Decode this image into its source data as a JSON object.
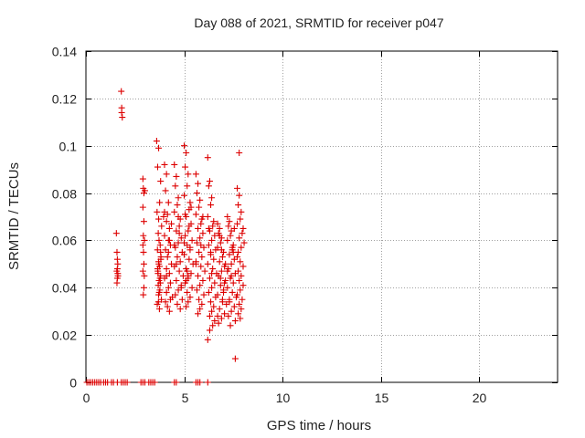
{
  "chart_data": {
    "type": "scatter",
    "title": "Day 088 of 2021, SRMTID for receiver p047",
    "xlabel": "GPS time / hours",
    "ylabel": "SRMTID / TECUs",
    "xlim": [
      0,
      24
    ],
    "ylim": [
      0,
      0.14
    ],
    "xticks": [
      0,
      5,
      10,
      15,
      20
    ],
    "xtick_labels": [
      "0",
      "5",
      "10",
      "15",
      "20"
    ],
    "yticks": [
      0,
      0.02,
      0.04,
      0.06,
      0.08,
      0.1,
      0.12,
      0.14
    ],
    "ytick_labels": [
      "0",
      "0.02",
      "0.04",
      "0.06",
      "0.08",
      "0.1",
      "0.12",
      "0.14"
    ],
    "grid": true,
    "marker": "+",
    "series": [
      {
        "name": "p047",
        "color": "#dd0000",
        "x": [
          0.05,
          0.15,
          0.25,
          0.35,
          0.45,
          0.55,
          0.65,
          0.75,
          0.9,
          1.0,
          1.1,
          1.3,
          1.4,
          1.6,
          1.8,
          1.9,
          2.0,
          2.1,
          2.8,
          2.9,
          3.0,
          3.2,
          3.3,
          3.4,
          3.5,
          4.5,
          4.6,
          5.6,
          5.7,
          5.8,
          6.2,
          1.55,
          1.58,
          1.6,
          1.62,
          1.6,
          1.58,
          1.62,
          1.6,
          1.57,
          1.63,
          1.8,
          1.82,
          1.85,
          1.82,
          2.9,
          2.92,
          2.95,
          2.9,
          2.95,
          2.92,
          2.98,
          2.9,
          2.93,
          2.95,
          2.9,
          2.97,
          2.95,
          2.92,
          3.0,
          3.6,
          3.7,
          3.65,
          3.8,
          3.75,
          3.62,
          3.7,
          3.85,
          3.68,
          3.72,
          3.78,
          3.64,
          3.82,
          3.7,
          3.75,
          3.66,
          3.8,
          3.72,
          3.68,
          3.76,
          3.7,
          3.84,
          3.63,
          3.74,
          3.8,
          3.71,
          3.67,
          3.79,
          3.73,
          3.69,
          3.77,
          3.65,
          3.81,
          4.0,
          4.1,
          4.05,
          4.2,
          4.15,
          3.95,
          4.1,
          4.25,
          4.0,
          4.2,
          4.3,
          4.05,
          4.15,
          4.35,
          4.1,
          4.25,
          4.0,
          4.3,
          4.2,
          4.1,
          4.4,
          4.05,
          4.15,
          4.25,
          4.35,
          4.2,
          4.1,
          4.3,
          4.0,
          4.25,
          4.5,
          4.6,
          4.55,
          4.7,
          4.65,
          4.5,
          4.8,
          4.75,
          4.6,
          4.85,
          4.7,
          4.55,
          4.9,
          4.65,
          4.8,
          4.5,
          4.75,
          4.95,
          4.6,
          4.85,
          4.7,
          4.55,
          4.9,
          4.65,
          4.8,
          4.7,
          4.6,
          4.85,
          4.75,
          4.5,
          5.0,
          5.1,
          5.05,
          5.2,
          5.15,
          5.0,
          5.3,
          5.25,
          5.1,
          5.35,
          5.2,
          5.05,
          5.4,
          5.15,
          5.3,
          5.0,
          5.25,
          5.45,
          5.1,
          5.35,
          5.2,
          5.05,
          5.4,
          5.15,
          5.3,
          5.2,
          5.1,
          5.35,
          5.25,
          5.0,
          5.05,
          5.15,
          5.3,
          5.2,
          5.1,
          5.6,
          5.7,
          5.65,
          5.8,
          5.75,
          5.6,
          5.9,
          5.85,
          5.7,
          5.95,
          5.8,
          5.65,
          6.0,
          5.75,
          5.9,
          5.6,
          5.85,
          6.05,
          5.7,
          5.95,
          5.8,
          5.65,
          6.0,
          5.75,
          5.9,
          5.8,
          5.7,
          5.95,
          5.85,
          5.6,
          6.2,
          6.3,
          6.25,
          6.4,
          6.35,
          6.2,
          6.5,
          6.45,
          6.3,
          6.55,
          6.4,
          6.25,
          6.6,
          6.35,
          6.5,
          6.2,
          6.45,
          6.65,
          6.3,
          6.55,
          6.4,
          6.25,
          6.6,
          6.35,
          6.5,
          6.4,
          6.3,
          6.55,
          6.45,
          6.2,
          6.3,
          6.4,
          6.35,
          6.25,
          6.7,
          6.8,
          6.75,
          6.9,
          6.85,
          6.7,
          7.0,
          6.95,
          6.8,
          7.05,
          6.9,
          6.75,
          7.1,
          6.85,
          7.0,
          6.7,
          6.95,
          7.15,
          6.8,
          7.05,
          6.9,
          6.75,
          7.1,
          6.85,
          7.0,
          6.9,
          6.8,
          7.05,
          6.95,
          6.7,
          7.2,
          7.3,
          7.25,
          7.4,
          7.35,
          7.2,
          7.5,
          7.45,
          7.3,
          7.55,
          7.4,
          7.25,
          7.6,
          7.35,
          7.5,
          7.2,
          7.45,
          7.65,
          7.3,
          7.55,
          7.4,
          7.25,
          7.6,
          7.35,
          7.5,
          7.4,
          7.3,
          7.55,
          7.45,
          7.2,
          7.7,
          7.8,
          7.75,
          7.9,
          7.85,
          7.7,
          8.0,
          7.95,
          7.8,
          8.05,
          7.9,
          7.75,
          7.7,
          7.85,
          8.0,
          7.75,
          7.9,
          7.8,
          8.0,
          7.85,
          7.7,
          7.95,
          7.8,
          7.9,
          7.75,
          7.85,
          7.6,
          7.8
        ],
        "y": [
          0,
          0,
          0,
          0,
          0,
          0,
          0,
          0,
          0,
          0,
          0,
          0,
          0,
          0,
          0,
          0,
          0,
          0,
          0,
          0,
          0,
          0,
          0,
          0,
          0,
          0,
          0,
          0,
          0,
          0,
          0,
          0.063,
          0.055,
          0.048,
          0.046,
          0.044,
          0.042,
          0.05,
          0.052,
          0.047,
          0.045,
          0.123,
          0.114,
          0.112,
          0.116,
          0.086,
          0.082,
          0.08,
          0.074,
          0.068,
          0.062,
          0.06,
          0.058,
          0.055,
          0.05,
          0.047,
          0.045,
          0.04,
          0.037,
          0.081,
          0.102,
          0.099,
          0.091,
          0.085,
          0.076,
          0.072,
          0.069,
          0.066,
          0.063,
          0.06,
          0.058,
          0.056,
          0.053,
          0.051,
          0.049,
          0.047,
          0.045,
          0.043,
          0.041,
          0.039,
          0.037,
          0.035,
          0.033,
          0.031,
          0.055,
          0.05,
          0.046,
          0.042,
          0.038,
          0.034,
          0.044,
          0.048,
          0.052,
          0.092,
          0.088,
          0.081,
          0.076,
          0.071,
          0.07,
          0.068,
          0.065,
          0.062,
          0.06,
          0.058,
          0.056,
          0.053,
          0.05,
          0.048,
          0.046,
          0.044,
          0.042,
          0.04,
          0.038,
          0.036,
          0.034,
          0.032,
          0.03,
          0.067,
          0.055,
          0.045,
          0.035,
          0.072,
          0.06,
          0.092,
          0.087,
          0.083,
          0.078,
          0.075,
          0.072,
          0.069,
          0.066,
          0.064,
          0.061,
          0.059,
          0.057,
          0.055,
          0.053,
          0.051,
          0.049,
          0.047,
          0.045,
          0.043,
          0.041,
          0.039,
          0.037,
          0.035,
          0.033,
          0.031,
          0.07,
          0.05,
          0.04,
          0.063,
          0.058,
          0.1,
          0.097,
          0.091,
          0.088,
          0.083,
          0.079,
          0.076,
          0.073,
          0.07,
          0.067,
          0.064,
          0.062,
          0.06,
          0.058,
          0.056,
          0.054,
          0.052,
          0.05,
          0.048,
          0.046,
          0.044,
          0.042,
          0.04,
          0.038,
          0.036,
          0.034,
          0.032,
          0.074,
          0.066,
          0.059,
          0.071,
          0.047,
          0.057,
          0.045,
          0.043,
          0.088,
          0.084,
          0.08,
          0.077,
          0.074,
          0.071,
          0.069,
          0.067,
          0.065,
          0.063,
          0.061,
          0.059,
          0.057,
          0.055,
          0.053,
          0.051,
          0.049,
          0.047,
          0.045,
          0.043,
          0.041,
          0.039,
          0.037,
          0.035,
          0.033,
          0.031,
          0.029,
          0.07,
          0.058,
          0.05,
          0.095,
          0.085,
          0.083,
          0.078,
          0.075,
          0.07,
          0.068,
          0.066,
          0.064,
          0.062,
          0.06,
          0.058,
          0.056,
          0.054,
          0.052,
          0.05,
          0.048,
          0.046,
          0.044,
          0.042,
          0.04,
          0.038,
          0.036,
          0.034,
          0.032,
          0.03,
          0.028,
          0.026,
          0.024,
          0.018,
          0.022,
          0.046,
          0.055,
          0.065,
          0.067,
          0.065,
          0.063,
          0.061,
          0.059,
          0.057,
          0.055,
          0.053,
          0.051,
          0.049,
          0.047,
          0.045,
          0.043,
          0.041,
          0.039,
          0.037,
          0.035,
          0.033,
          0.031,
          0.029,
          0.027,
          0.025,
          0.05,
          0.044,
          0.038,
          0.056,
          0.062,
          0.042,
          0.034,
          0.028,
          0.07,
          0.068,
          0.066,
          0.064,
          0.062,
          0.06,
          0.058,
          0.056,
          0.054,
          0.052,
          0.05,
          0.048,
          0.046,
          0.044,
          0.042,
          0.04,
          0.038,
          0.036,
          0.034,
          0.032,
          0.03,
          0.028,
          0.026,
          0.024,
          0.055,
          0.045,
          0.035,
          0.065,
          0.057,
          0.047,
          0.082,
          0.079,
          0.075,
          0.072,
          0.069,
          0.067,
          0.065,
          0.063,
          0.061,
          0.059,
          0.057,
          0.055,
          0.053,
          0.051,
          0.049,
          0.047,
          0.045,
          0.043,
          0.041,
          0.039,
          0.037,
          0.035,
          0.033,
          0.031,
          0.029,
          0.027,
          0.01,
          0.097
        ]
      }
    ]
  }
}
